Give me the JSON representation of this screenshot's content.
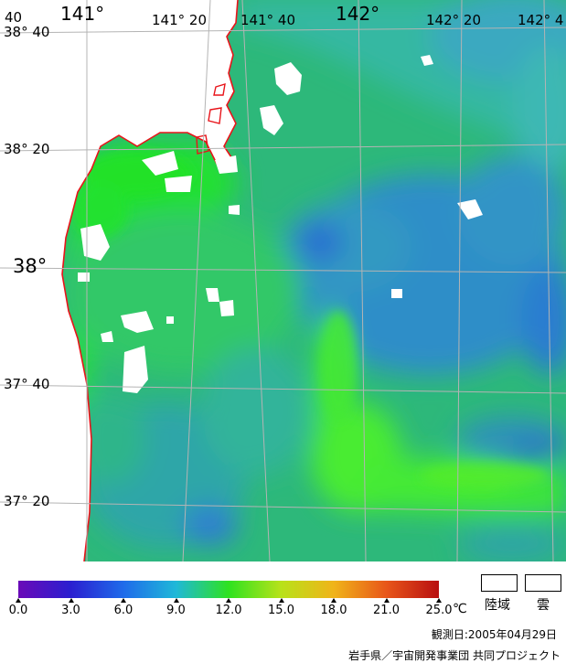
{
  "map": {
    "lon_labels": [
      {
        "text": "141°",
        "style": "major"
      },
      {
        "text": "141° 20",
        "style": "minor"
      },
      {
        "text": "141° 40",
        "style": "minor"
      },
      {
        "text": "142°",
        "style": "major"
      },
      {
        "text": "142° 20",
        "style": "minor"
      },
      {
        "text": "142° 4",
        "style": "minor"
      }
    ],
    "lat_labels": [
      {
        "text": "38° 40",
        "style": "minor"
      },
      {
        "text": "38° 20",
        "style": "minor"
      },
      {
        "text": "38°",
        "style": "major"
      },
      {
        "text": "37° 40",
        "style": "minor"
      },
      {
        "text": "37° 20",
        "style": "minor"
      }
    ],
    "corner_label": "40",
    "colors": {
      "land": "#ffffff",
      "coastline": "#e8141a",
      "grid": "#b4b4b4",
      "sea_base": "#2fbf6c",
      "warm": "#34e83a",
      "cool": "#2e8fc9"
    }
  },
  "legend": {
    "ticks": [
      "0.0",
      "3.0",
      "6.0",
      "9.0",
      "12.0",
      "15.0",
      "18.0",
      "21.0",
      "25.0"
    ],
    "unit": "℃",
    "colors": [
      "#6a0ab8",
      "#2a1fd0",
      "#1f6bea",
      "#1fb8d8",
      "#2ee21f",
      "#b8e21a",
      "#f0b41a",
      "#e8561a",
      "#b80f10"
    ],
    "land_label": "陸域",
    "cloud_label": "雲",
    "obs_date": "観測日:2005年04月29日",
    "credit": "岩手県／宇宙開発事業団 共同プロジェクト"
  }
}
